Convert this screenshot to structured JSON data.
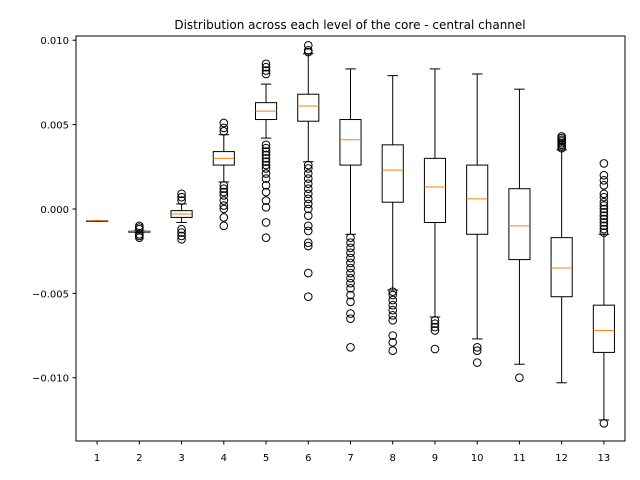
{
  "chart_data": {
    "type": "boxplot",
    "title": "Distribution across each level of the core - central channel",
    "xlabel": "",
    "ylabel": "",
    "categories": [
      "1",
      "2",
      "3",
      "4",
      "5",
      "6",
      "7",
      "8",
      "9",
      "10",
      "11",
      "12",
      "13"
    ],
    "ylim": [
      -0.01375,
      0.01025
    ],
    "yticks": [
      -0.01,
      -0.005,
      0.0,
      0.005,
      0.01
    ],
    "ytick_labels": [
      "−0.010",
      "−0.005",
      "0.000",
      "0.005",
      "0.010"
    ],
    "colors": {
      "box": "#000000",
      "median": "#ff7f0e",
      "face": "#ffffff",
      "axis": "#000000"
    },
    "grid": false,
    "boxes": [
      {
        "category": "1",
        "whislo": -0.0007,
        "q1": -0.0007,
        "med": -0.0007,
        "q3": -0.0007,
        "whishi": -0.0007,
        "fliers": []
      },
      {
        "category": "2",
        "whislo": -0.0014,
        "q1": -0.00138,
        "med": -0.00135,
        "q3": -0.00132,
        "whishi": -0.0013,
        "fliers": [
          -0.0017,
          -0.0016,
          -0.0015,
          -0.0012,
          -0.0011,
          -0.001
        ]
      },
      {
        "category": "3",
        "whislo": -0.0008,
        "q1": -0.0005,
        "med": -0.0003,
        "q3": -0.0001,
        "whishi": 0.0003,
        "fliers": [
          -0.0018,
          -0.0016,
          -0.0014,
          -0.0012,
          0.0005,
          0.0007,
          0.0009
        ]
      },
      {
        "category": "4",
        "whislo": 0.0016,
        "q1": 0.0026,
        "med": 0.003,
        "q3": 0.0034,
        "whishi": 0.0044,
        "fliers": [
          -0.001,
          -0.0005,
          0.0,
          0.0002,
          0.0005,
          0.0008,
          0.001,
          0.0012,
          0.0014,
          0.0046,
          0.0048,
          0.0051
        ]
      },
      {
        "category": "5",
        "whislo": 0.0042,
        "q1": 0.0053,
        "med": 0.0058,
        "q3": 0.0063,
        "whishi": 0.0074,
        "fliers": [
          -0.0017,
          -0.0008,
          0.0001,
          0.0005,
          0.001,
          0.0014,
          0.0018,
          0.0021,
          0.0024,
          0.0026,
          0.0028,
          0.003,
          0.0032,
          0.0034,
          0.0036,
          0.0038,
          0.008,
          0.0082,
          0.0084,
          0.0086
        ]
      },
      {
        "category": "6",
        "whislo": 0.0028,
        "q1": 0.0052,
        "med": 0.0061,
        "q3": 0.0068,
        "whishi": 0.0092,
        "fliers": [
          -0.0052,
          -0.0038,
          -0.0022,
          -0.002,
          -0.0013,
          -0.001,
          -0.0004,
          0.0,
          0.0003,
          0.0006,
          0.0009,
          0.0012,
          0.0015,
          0.0018,
          0.0021,
          0.0024,
          0.0026,
          0.0093,
          0.0094,
          0.0097
        ]
      },
      {
        "category": "7",
        "whislo": -0.0015,
        "q1": 0.0026,
        "med": 0.0041,
        "q3": 0.0053,
        "whishi": 0.0083,
        "fliers": [
          -0.0082,
          -0.0065,
          -0.0062,
          -0.0055,
          -0.0051,
          -0.0047,
          -0.0044,
          -0.0041,
          -0.0038,
          -0.0035,
          -0.0032,
          -0.0029,
          -0.0026,
          -0.0023,
          -0.002,
          -0.0017
        ]
      },
      {
        "category": "8",
        "whislo": -0.0048,
        "q1": 0.0004,
        "med": 0.0023,
        "q3": 0.0038,
        "whishi": 0.0079,
        "fliers": [
          -0.0084,
          -0.0079,
          -0.0075,
          -0.0066,
          -0.0063,
          -0.006,
          -0.0057,
          -0.0054,
          -0.0051,
          -0.0049
        ]
      },
      {
        "category": "9",
        "whislo": -0.0064,
        "q1": -0.0008,
        "med": 0.0013,
        "q3": 0.003,
        "whishi": 0.0083,
        "fliers": [
          -0.0083,
          -0.0072,
          -0.007,
          -0.0068,
          -0.0066
        ]
      },
      {
        "category": "10",
        "whislo": -0.0077,
        "q1": -0.0015,
        "med": 0.0006,
        "q3": 0.0026,
        "whishi": 0.008,
        "fliers": [
          -0.0091,
          -0.0084,
          -0.0082
        ]
      },
      {
        "category": "11",
        "whislo": -0.0092,
        "q1": -0.003,
        "med": -0.001,
        "q3": 0.0012,
        "whishi": 0.0071,
        "fliers": [
          -0.01
        ]
      },
      {
        "category": "12",
        "whislo": -0.0103,
        "q1": -0.0052,
        "med": -0.0035,
        "q3": -0.0017,
        "whishi": 0.0035,
        "fliers": [
          0.0036,
          0.0037,
          0.0038,
          0.0039,
          0.004,
          0.0041,
          0.0042,
          0.0043
        ]
      },
      {
        "category": "13",
        "whislo": -0.0125,
        "q1": -0.0085,
        "med": -0.0072,
        "q3": -0.0057,
        "whishi": -0.0015,
        "fliers": [
          -0.0127,
          -0.0014,
          -0.0012,
          -0.001,
          -0.0008,
          -0.0006,
          -0.0004,
          -0.0002,
          0.0,
          0.0002,
          0.0004,
          0.0007,
          0.0009,
          0.0014,
          0.0017,
          0.002,
          0.0027
        ]
      }
    ]
  }
}
